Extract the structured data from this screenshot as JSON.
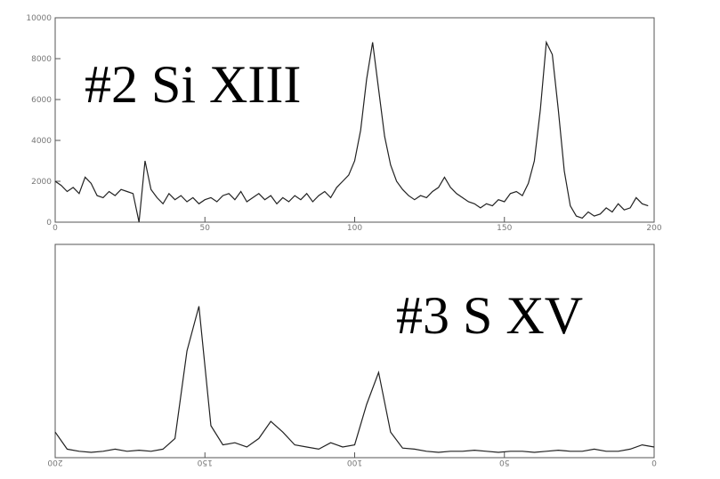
{
  "chart_data": [
    {
      "type": "line",
      "title": "#2 Si XIII",
      "color": "#222222",
      "x": [
        0,
        2,
        4,
        6,
        8,
        10,
        12,
        14,
        16,
        18,
        20,
        22,
        24,
        26,
        28,
        30,
        32,
        34,
        36,
        38,
        40,
        42,
        44,
        46,
        48,
        50,
        52,
        54,
        56,
        58,
        60,
        62,
        64,
        66,
        68,
        70,
        72,
        74,
        76,
        78,
        80,
        82,
        84,
        86,
        88,
        90,
        92,
        94,
        96,
        98,
        100,
        102,
        104,
        106,
        108,
        110,
        112,
        114,
        116,
        118,
        120,
        122,
        124,
        126,
        128,
        130,
        132,
        134,
        136,
        138,
        140,
        142,
        144,
        146,
        148,
        150,
        152,
        154,
        156,
        158,
        160,
        162,
        164,
        166,
        168,
        170,
        172,
        174,
        176,
        178,
        180,
        182,
        184,
        186,
        188,
        190,
        192,
        194,
        196,
        198
      ],
      "values": [
        2000,
        1800,
        1500,
        1700,
        1400,
        2200,
        1900,
        1300,
        1200,
        1500,
        1300,
        1600,
        1500,
        1400,
        0,
        3000,
        1600,
        1200,
        900,
        1400,
        1100,
        1300,
        1000,
        1200,
        900,
        1100,
        1200,
        1000,
        1300,
        1400,
        1100,
        1500,
        1000,
        1200,
        1400,
        1100,
        1300,
        900,
        1200,
        1000,
        1300,
        1100,
        1400,
        1000,
        1300,
        1500,
        1200,
        1700,
        2000,
        2300,
        3000,
        4500,
        7000,
        8800,
        6500,
        4200,
        2800,
        2000,
        1600,
        1300,
        1100,
        1300,
        1200,
        1500,
        1700,
        2200,
        1700,
        1400,
        1200,
        1000,
        900,
        700,
        900,
        800,
        1100,
        1000,
        1400,
        1500,
        1300,
        1900,
        3000,
        5500,
        8800,
        8200,
        5500,
        2500,
        800,
        300,
        200,
        500,
        300,
        400,
        700,
        500,
        900,
        600,
        700,
        1200,
        900,
        800
      ],
      "xlim": [
        0,
        200
      ],
      "xticks": [
        0,
        50,
        100,
        150,
        200
      ],
      "ylim": [
        0,
        10000
      ],
      "yticks": [
        0,
        2000,
        4000,
        6000,
        8000,
        10000
      ]
    },
    {
      "type": "line",
      "title": "#3 S XV",
      "color": "#222222",
      "x": [
        0,
        4,
        8,
        12,
        16,
        20,
        24,
        28,
        32,
        36,
        40,
        44,
        48,
        52,
        56,
        60,
        64,
        68,
        72,
        76,
        80,
        84,
        88,
        92,
        96,
        100,
        104,
        108,
        112,
        116,
        120,
        124,
        128,
        132,
        136,
        140,
        144,
        148,
        152,
        156,
        160,
        164,
        168,
        172,
        176,
        180,
        184,
        188,
        192,
        196,
        200
      ],
      "values": [
        500,
        600,
        400,
        300,
        300,
        400,
        300,
        300,
        350,
        300,
        250,
        300,
        300,
        250,
        300,
        350,
        300,
        300,
        250,
        300,
        400,
        450,
        1200,
        4000,
        2500,
        600,
        500,
        700,
        400,
        500,
        600,
        1200,
        1700,
        900,
        500,
        700,
        600,
        1500,
        7100,
        5000,
        900,
        400,
        300,
        350,
        300,
        400,
        300,
        250,
        300,
        400,
        1200
      ],
      "xlim": [
        200,
        0
      ],
      "xticks": [
        200,
        150,
        100,
        50,
        0
      ],
      "ylim": [
        0,
        10000
      ]
    }
  ]
}
